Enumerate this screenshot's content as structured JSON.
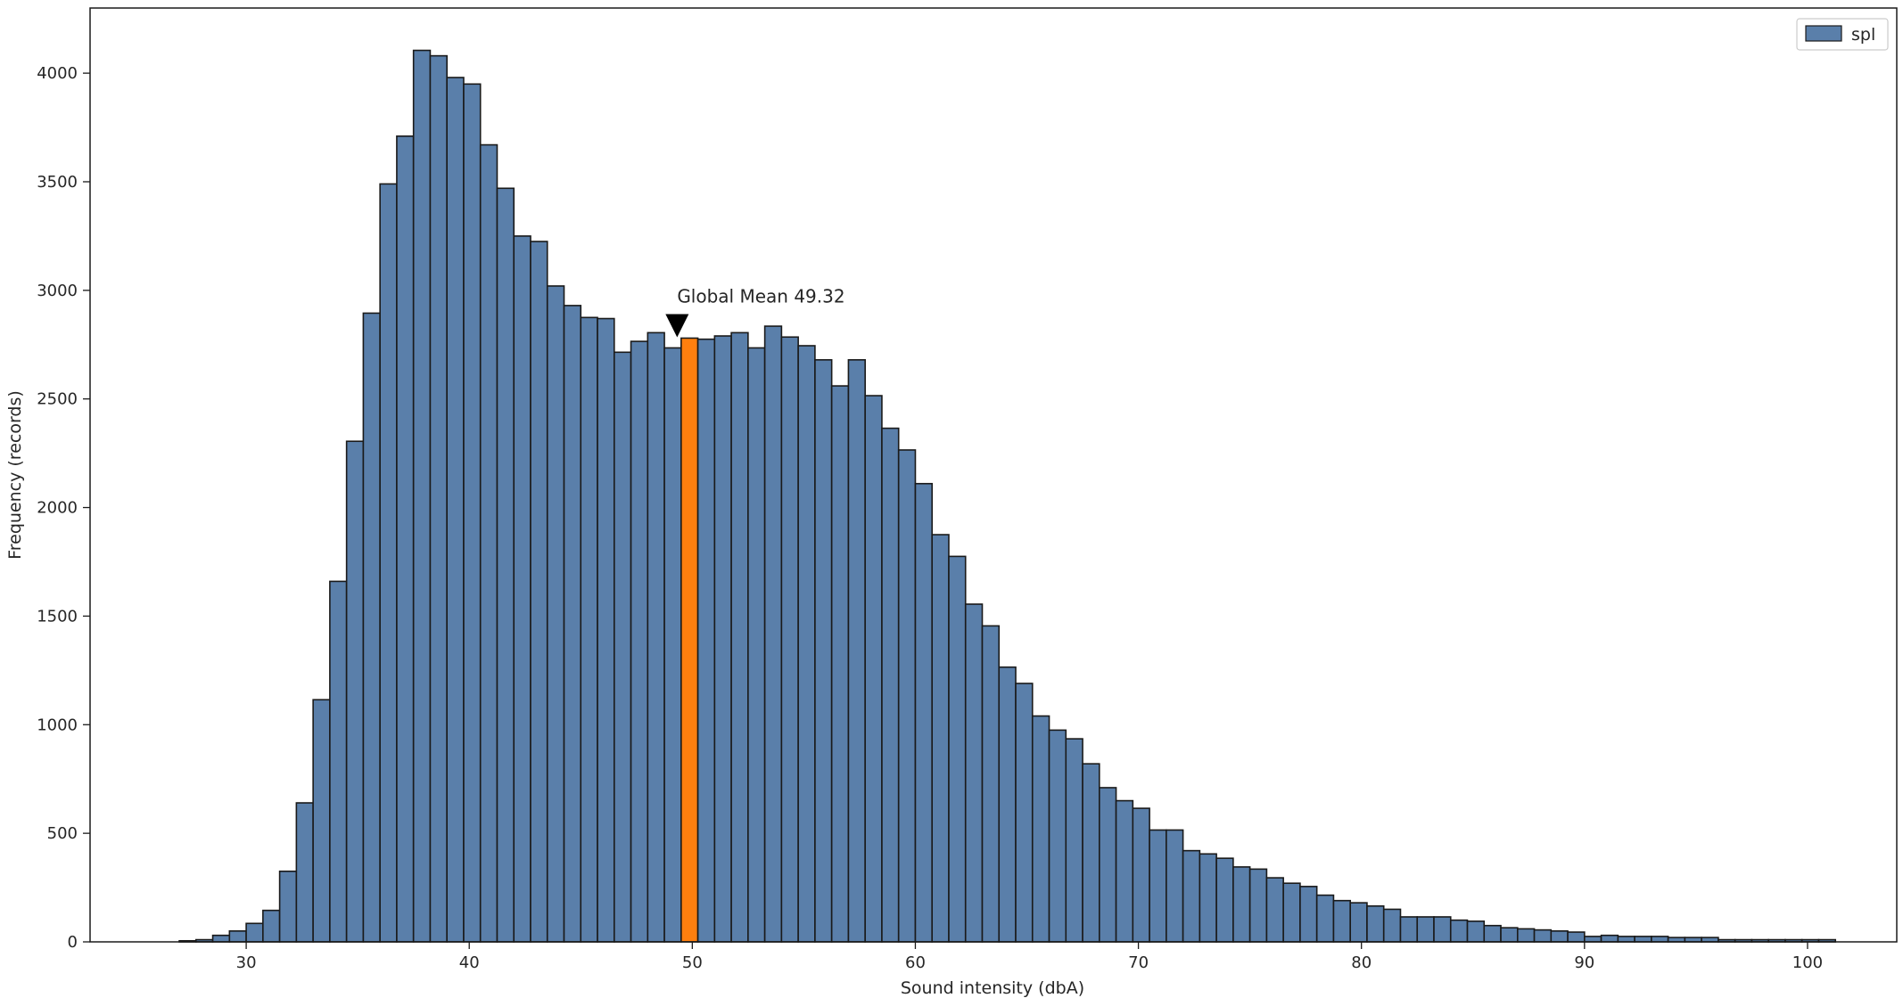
{
  "chart_data": {
    "type": "bar",
    "title": "",
    "xlabel": "Sound intensity (dbA)",
    "ylabel": "Frequency (records)",
    "xlim": [
      23,
      104
    ],
    "ylim": [
      0,
      4300
    ],
    "xticks": [
      30,
      40,
      50,
      60,
      70,
      80,
      90,
      100
    ],
    "yticks": [
      0,
      500,
      1000,
      1500,
      2000,
      2500,
      3000,
      3500,
      4000
    ],
    "bin_start": 27.0,
    "bin_width": 0.75,
    "legend": {
      "position": "top-right",
      "entries": [
        "spl"
      ]
    },
    "grid": false,
    "colors": {
      "bars": "#5a7faa",
      "highlight": "#ff7f0e",
      "edge": "#1a1a1a"
    },
    "series": [
      {
        "name": "spl",
        "values": [
          5,
          10,
          30,
          50,
          85,
          145,
          325,
          640,
          1115,
          1660,
          2305,
          2895,
          3490,
          3710,
          4105,
          4080,
          3980,
          3950,
          3670,
          3470,
          3250,
          3225,
          3020,
          2930,
          2875,
          2870,
          2715,
          2765,
          2805,
          2735,
          2780,
          2775,
          2790,
          2805,
          2735,
          2835,
          2785,
          2745,
          2680,
          2560,
          2680,
          2515,
          2365,
          2265,
          2110,
          1875,
          1775,
          1555,
          1455,
          1265,
          1190,
          1040,
          975,
          935,
          820,
          710,
          650,
          615,
          515,
          515,
          420,
          405,
          385,
          345,
          335,
          295,
          270,
          255,
          215,
          190,
          180,
          165,
          150,
          115,
          115,
          115,
          100,
          95,
          75,
          65,
          60,
          55,
          50,
          45,
          25,
          30,
          25,
          25,
          25,
          20,
          20,
          20,
          10,
          10,
          10,
          10,
          10,
          10,
          10
        ]
      }
    ],
    "highlight_index": 30,
    "annotations": [
      {
        "text": "Global Mean 49.32",
        "x": 49.32,
        "y": 2780
      }
    ]
  }
}
